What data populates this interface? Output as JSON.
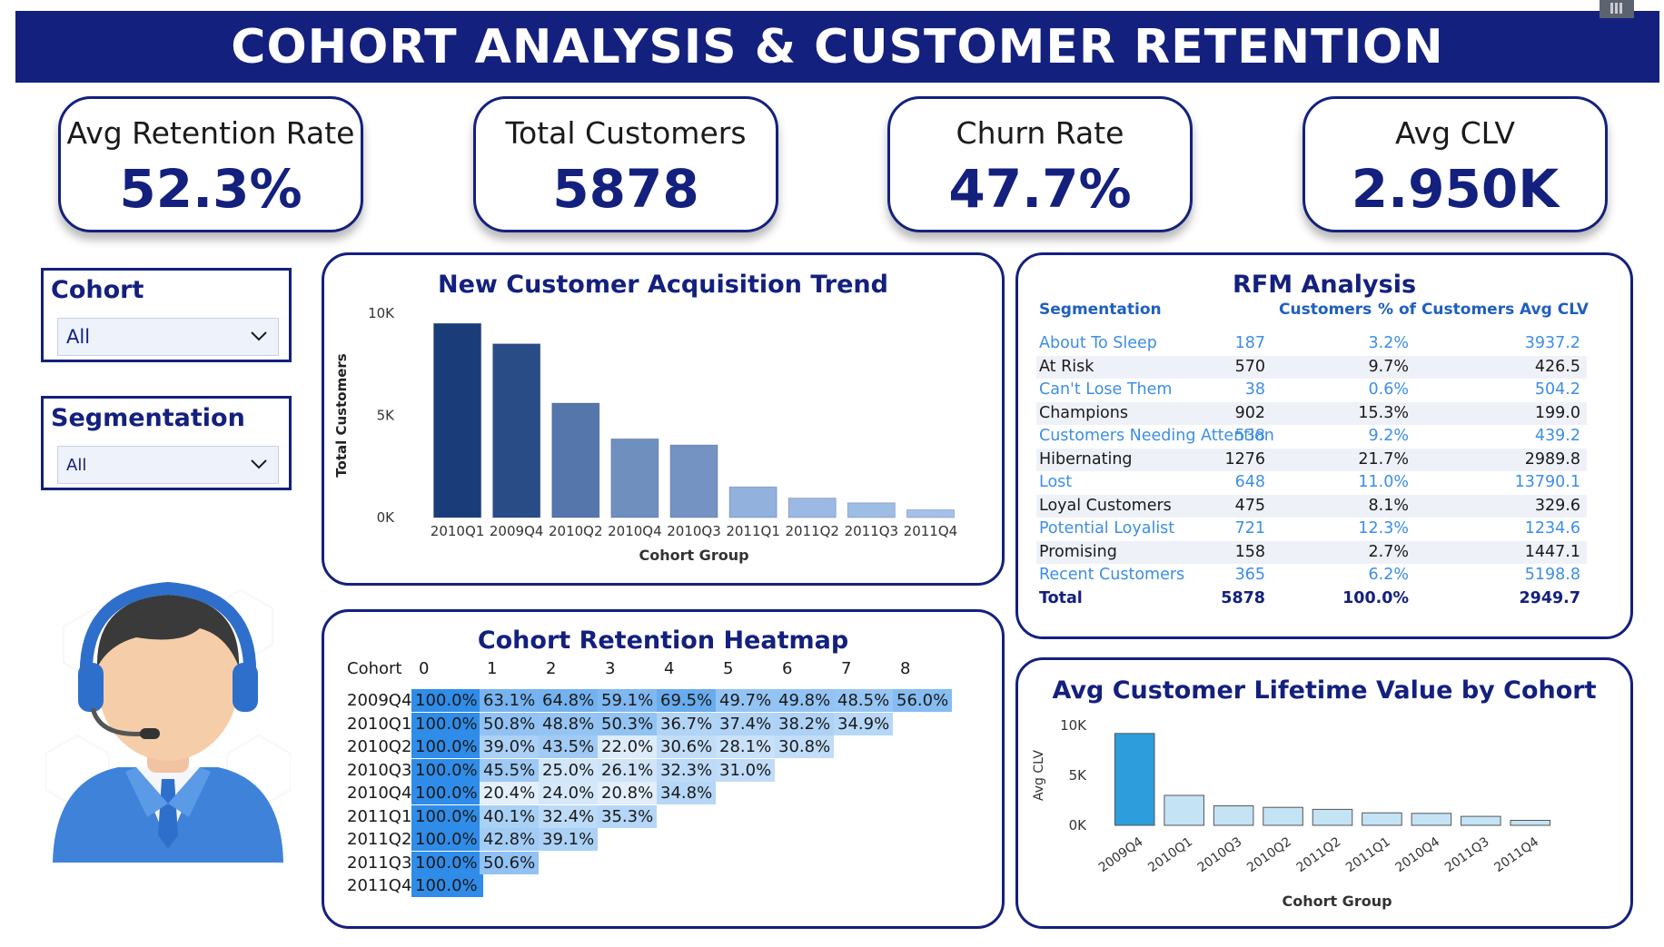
{
  "header": {
    "title": "COHORT ANALYSIS & CUSTOMER RETENTION"
  },
  "kpis": [
    {
      "label": "Avg Retention Rate",
      "value": "52.3%"
    },
    {
      "label": "Total Customers",
      "value": "5878"
    },
    {
      "label": "Churn Rate",
      "value": "47.7%"
    },
    {
      "label": "Avg CLV",
      "value": "2.950K"
    }
  ],
  "filters": {
    "cohort": {
      "title": "Cohort",
      "value": "All"
    },
    "segmentation": {
      "title": "Segmentation",
      "value": "All"
    }
  },
  "colors": {
    "brand": "#14207e",
    "bar_dark": "#1a3d7a",
    "bar_light": "#a9c7ee",
    "heat_strong": "#2f8ce8",
    "heat_light": "#e6f1fc",
    "link_blue": "#3d8ee6",
    "clv_bar": "#2e9ddc"
  },
  "chart_data": [
    {
      "type": "bar",
      "title": "New Customer Acquisition Trend",
      "xlabel": "Cohort Group",
      "ylabel": "Total Customers",
      "categories": [
        "2010Q1",
        "2009Q4",
        "2010Q2",
        "2010Q4",
        "2010Q3",
        "2011Q1",
        "2011Q2",
        "2011Q3",
        "2011Q4"
      ],
      "values": [
        9500,
        8500,
        5600,
        3850,
        3550,
        1500,
        950,
        720,
        380
      ],
      "yticks": [
        "0K",
        "5K",
        "10K"
      ],
      "ylim": [
        0,
        10000
      ],
      "grid": false
    },
    {
      "type": "table",
      "title": "RFM Analysis",
      "columns": [
        "Segmentation",
        "Customers",
        "% of Customers",
        "Avg CLV"
      ],
      "rows": [
        [
          "About To Sleep",
          "187",
          "3.2%",
          "3937.2"
        ],
        [
          "At Risk",
          "570",
          "9.7%",
          "426.5"
        ],
        [
          "Can't Lose Them",
          "38",
          "0.6%",
          "504.2"
        ],
        [
          "Champions",
          "902",
          "15.3%",
          "199.0"
        ],
        [
          "Customers Needing Attention",
          "538",
          "9.2%",
          "439.2"
        ],
        [
          "Hibernating",
          "1276",
          "21.7%",
          "2989.8"
        ],
        [
          "Lost",
          "648",
          "11.0%",
          "13790.1"
        ],
        [
          "Loyal Customers",
          "475",
          "8.1%",
          "329.6"
        ],
        [
          "Potential Loyalist",
          "721",
          "12.3%",
          "1234.6"
        ],
        [
          "Promising",
          "158",
          "2.7%",
          "1447.1"
        ],
        [
          "Recent Customers",
          "365",
          "6.2%",
          "5198.8"
        ]
      ],
      "total": [
        "Total",
        "5878",
        "100.0%",
        "2949.7"
      ]
    },
    {
      "type": "heatmap",
      "title": "Cohort Retention Heatmap",
      "corner_label": "Cohort",
      "columns": [
        "0",
        "1",
        "2",
        "3",
        "4",
        "5",
        "6",
        "7",
        "8"
      ],
      "rows": [
        {
          "cohort": "2009Q4",
          "values": [
            "100.0%",
            "63.1%",
            "64.8%",
            "59.1%",
            "69.5%",
            "49.7%",
            "49.8%",
            "48.5%",
            "56.0%"
          ]
        },
        {
          "cohort": "2010Q1",
          "values": [
            "100.0%",
            "50.8%",
            "48.8%",
            "50.3%",
            "36.7%",
            "37.4%",
            "38.2%",
            "34.9%"
          ]
        },
        {
          "cohort": "2010Q2",
          "values": [
            "100.0%",
            "39.0%",
            "43.5%",
            "22.0%",
            "30.6%",
            "28.1%",
            "30.8%"
          ]
        },
        {
          "cohort": "2010Q3",
          "values": [
            "100.0%",
            "45.5%",
            "25.0%",
            "26.1%",
            "32.3%",
            "31.0%"
          ]
        },
        {
          "cohort": "2010Q4",
          "values": [
            "100.0%",
            "20.4%",
            "24.0%",
            "20.8%",
            "34.8%"
          ]
        },
        {
          "cohort": "2011Q1",
          "values": [
            "100.0%",
            "40.1%",
            "32.4%",
            "35.3%"
          ]
        },
        {
          "cohort": "2011Q2",
          "values": [
            "100.0%",
            "42.8%",
            "39.1%"
          ]
        },
        {
          "cohort": "2011Q3",
          "values": [
            "100.0%",
            "50.6%"
          ]
        },
        {
          "cohort": "2011Q4",
          "values": [
            "100.0%"
          ]
        }
      ]
    },
    {
      "type": "bar",
      "title": "Avg Customer Lifetime Value by Cohort",
      "xlabel": "Cohort Group",
      "ylabel": "Avg CLV",
      "categories": [
        "2009Q4",
        "2010Q1",
        "2010Q3",
        "2010Q2",
        "2011Q2",
        "2011Q1",
        "2010Q4",
        "2011Q3",
        "2011Q4"
      ],
      "values": [
        9200,
        3000,
        1950,
        1800,
        1600,
        1250,
        1200,
        900,
        500
      ],
      "yticks": [
        "0K",
        "5K",
        "10K"
      ],
      "ylim": [
        0,
        10000
      ],
      "grid": false
    }
  ]
}
